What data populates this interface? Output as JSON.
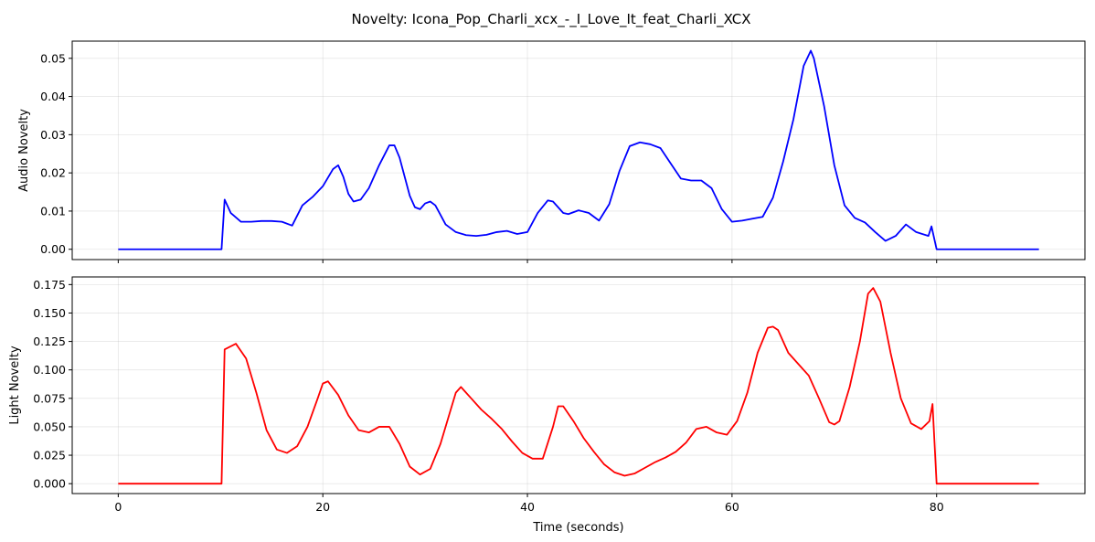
{
  "title": "Novelty: Icona_Pop_Charli_xcx_-_I_Love_It_feat_Charli_XCX",
  "chart_data": [
    {
      "type": "line",
      "ylabel": "Audio Novelty",
      "xlabel": "",
      "xlim": [
        -4.5,
        94.5
      ],
      "ylim": [
        -0.0027,
        0.0545
      ],
      "xticks": [
        0,
        20,
        40,
        60,
        80
      ],
      "yticks": [
        0.0,
        0.01,
        0.02,
        0.03,
        0.04,
        0.05
      ],
      "ytick_labels": [
        "0.00",
        "0.01",
        "0.02",
        "0.03",
        "0.04",
        "0.05"
      ],
      "show_xtick_labels": false,
      "grid": true,
      "series": [
        {
          "color": "#0000ff",
          "x": [
            0,
            10,
            10.1,
            10.4,
            11,
            12,
            13,
            14,
            15,
            16,
            17,
            18,
            19,
            20,
            21,
            21.5,
            22,
            22.5,
            23,
            23.7,
            24.5,
            25.5,
            26.5,
            27,
            27.5,
            28,
            28.5,
            29,
            29.5,
            30,
            30.5,
            31,
            31.5,
            32,
            33,
            34,
            35,
            36,
            37,
            38,
            39,
            40,
            41,
            42,
            42.5,
            43,
            43.5,
            44,
            45,
            46,
            47,
            48,
            49,
            50,
            51,
            52,
            53,
            54,
            55,
            56,
            57,
            58,
            59,
            60,
            61,
            62,
            63,
            64,
            65,
            66,
            67,
            67.7,
            68,
            69,
            70,
            71,
            72,
            73,
            74,
            75,
            76,
            77,
            78,
            79.2,
            79.5,
            80,
            90
          ],
          "y": [
            0.0,
            0.0,
            0.0,
            0.013,
            0.0095,
            0.0072,
            0.0072,
            0.0074,
            0.0074,
            0.0072,
            0.0062,
            0.0115,
            0.0137,
            0.0165,
            0.021,
            0.022,
            0.019,
            0.0145,
            0.0125,
            0.013,
            0.016,
            0.022,
            0.0272,
            0.0272,
            0.024,
            0.019,
            0.014,
            0.011,
            0.0105,
            0.012,
            0.0125,
            0.0115,
            0.009,
            0.0065,
            0.0045,
            0.0037,
            0.0035,
            0.0038,
            0.0045,
            0.0048,
            0.004,
            0.0045,
            0.0095,
            0.0128,
            0.0125,
            0.011,
            0.0095,
            0.0092,
            0.0102,
            0.0095,
            0.0075,
            0.0118,
            0.0205,
            0.027,
            0.028,
            0.0275,
            0.0265,
            0.0225,
            0.0185,
            0.018,
            0.018,
            0.016,
            0.0105,
            0.0072,
            0.0075,
            0.008,
            0.0085,
            0.0135,
            0.023,
            0.034,
            0.048,
            0.052,
            0.05,
            0.0375,
            0.022,
            0.0115,
            0.0082,
            0.007,
            0.0045,
            0.0022,
            0.0035,
            0.0065,
            0.0045,
            0.0035,
            0.006,
            0.0,
            0.0
          ]
        }
      ]
    },
    {
      "type": "line",
      "ylabel": "Light Novelty",
      "xlabel": "Time (seconds)",
      "xlim": [
        -4.5,
        94.5
      ],
      "ylim": [
        -0.0087,
        0.1817
      ],
      "xticks": [
        0,
        20,
        40,
        60,
        80
      ],
      "xtick_labels": [
        "0",
        "20",
        "40",
        "60",
        "80"
      ],
      "yticks": [
        0.0,
        0.025,
        0.05,
        0.075,
        0.1,
        0.125,
        0.15,
        0.175
      ],
      "ytick_labels": [
        "0.000",
        "0.025",
        "0.050",
        "0.075",
        "0.100",
        "0.125",
        "0.150",
        "0.175"
      ],
      "show_xtick_labels": true,
      "grid": true,
      "series": [
        {
          "color": "#ff0000",
          "x": [
            0,
            10,
            10.1,
            10.4,
            11.5,
            12.5,
            13.5,
            14.5,
            15.5,
            16.5,
            17.5,
            18.5,
            19.5,
            20,
            20.5,
            21.5,
            22.5,
            23.5,
            24.5,
            25.5,
            26.5,
            27.5,
            28.5,
            29.5,
            30.5,
            31.5,
            32.5,
            33,
            33.5,
            34.5,
            35.5,
            36.5,
            37.5,
            38.5,
            39.5,
            40.5,
            41.5,
            42.5,
            43,
            43.5,
            44.5,
            45.5,
            46.5,
            47.5,
            48.5,
            49.5,
            50.5,
            51.5,
            52.5,
            53.5,
            54.5,
            55.5,
            56.5,
            57.5,
            58.5,
            59.5,
            60.5,
            61.5,
            62.5,
            63.5,
            64,
            64.5,
            65.5,
            66.5,
            67.5,
            68.5,
            69.5,
            70,
            70.5,
            71.5,
            72.5,
            73.3,
            73.8,
            74.5,
            75.5,
            76.5,
            77.5,
            78.5,
            79.3,
            79.6,
            80,
            90
          ],
          "y": [
            0.0,
            0.0,
            0.0,
            0.118,
            0.123,
            0.11,
            0.08,
            0.047,
            0.03,
            0.027,
            0.033,
            0.05,
            0.075,
            0.088,
            0.09,
            0.078,
            0.06,
            0.047,
            0.045,
            0.05,
            0.05,
            0.035,
            0.015,
            0.008,
            0.013,
            0.035,
            0.065,
            0.08,
            0.085,
            0.075,
            0.065,
            0.057,
            0.048,
            0.037,
            0.027,
            0.022,
            0.022,
            0.05,
            0.068,
            0.068,
            0.055,
            0.04,
            0.028,
            0.017,
            0.01,
            0.007,
            0.009,
            0.014,
            0.019,
            0.023,
            0.028,
            0.036,
            0.048,
            0.05,
            0.045,
            0.043,
            0.055,
            0.08,
            0.115,
            0.137,
            0.138,
            0.135,
            0.115,
            0.105,
            0.095,
            0.075,
            0.054,
            0.052,
            0.055,
            0.085,
            0.125,
            0.167,
            0.172,
            0.16,
            0.115,
            0.075,
            0.053,
            0.048,
            0.055,
            0.07,
            0.0,
            0.0
          ]
        }
      ]
    }
  ]
}
